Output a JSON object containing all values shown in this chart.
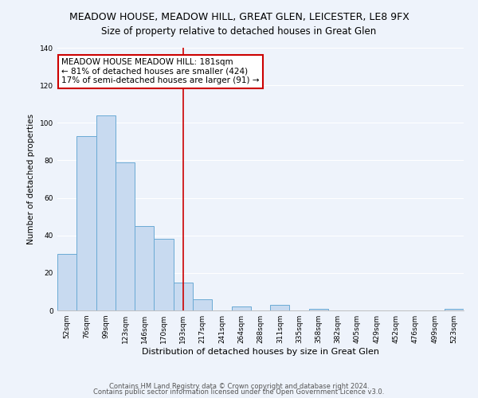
{
  "title": "MEADOW HOUSE, MEADOW HILL, GREAT GLEN, LEICESTER, LE8 9FX",
  "subtitle": "Size of property relative to detached houses in Great Glen",
  "xlabel": "Distribution of detached houses by size in Great Glen",
  "ylabel": "Number of detached properties",
  "bar_labels": [
    "52sqm",
    "76sqm",
    "99sqm",
    "123sqm",
    "146sqm",
    "170sqm",
    "193sqm",
    "217sqm",
    "241sqm",
    "264sqm",
    "288sqm",
    "311sqm",
    "335sqm",
    "358sqm",
    "382sqm",
    "405sqm",
    "429sqm",
    "452sqm",
    "476sqm",
    "499sqm",
    "523sqm"
  ],
  "bar_heights": [
    30,
    93,
    104,
    79,
    45,
    38,
    15,
    6,
    0,
    2,
    0,
    3,
    0,
    1,
    0,
    0,
    0,
    0,
    0,
    0,
    1
  ],
  "bar_color": "#c8daf0",
  "bar_edge_color": "#6aaad4",
  "vline_x_index": 6,
  "vline_color": "#cc0000",
  "annotation_text": "MEADOW HOUSE MEADOW HILL: 181sqm\n← 81% of detached houses are smaller (424)\n17% of semi-detached houses are larger (91) →",
  "ylim": [
    0,
    140
  ],
  "yticks": [
    0,
    20,
    40,
    60,
    80,
    100,
    120,
    140
  ],
  "footnote1": "Contains HM Land Registry data © Crown copyright and database right 2024.",
  "footnote2": "Contains public sector information licensed under the Open Government Licence v3.0.",
  "bg_color": "#eef3fb",
  "grid_color": "#ffffff",
  "title_fontsize": 9,
  "subtitle_fontsize": 8.5,
  "xlabel_fontsize": 8,
  "ylabel_fontsize": 7.5,
  "tick_fontsize": 6.5,
  "annotation_fontsize": 7.5,
  "footnote_fontsize": 6
}
